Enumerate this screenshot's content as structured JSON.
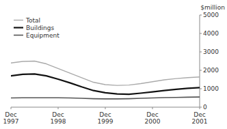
{
  "chart_data": {
    "type": "line",
    "ylabel": "$million",
    "categories": [
      "Dec\n1997",
      null,
      null,
      null,
      "Dec\n1998",
      null,
      null,
      null,
      "Dec\n1999",
      null,
      null,
      null,
      "Dec\n2000",
      null,
      null,
      null,
      "Dec\n2001"
    ],
    "series": [
      {
        "name": "Total",
        "color": "#aaaaaa",
        "values": [
          2400,
          2480,
          2500,
          2350,
          2100,
          1850,
          1600,
          1350,
          1220,
          1180,
          1200,
          1280,
          1380,
          1480,
          1550,
          1600,
          1640
        ]
      },
      {
        "name": "Buildings",
        "color": "#111111",
        "values": [
          1700,
          1780,
          1800,
          1700,
          1520,
          1320,
          1100,
          900,
          780,
          720,
          700,
          760,
          830,
          900,
          970,
          1020,
          1060
        ]
      },
      {
        "name": "Equipment",
        "color": "#555555",
        "values": [
          500,
          510,
          510,
          510,
          510,
          500,
          480,
          460,
          450,
          450,
          460,
          480,
          500,
          520,
          530,
          540,
          550
        ]
      }
    ],
    "ylim": [
      0,
      5000
    ],
    "yticks": [
      0,
      1000,
      2000,
      3000,
      4000,
      5000
    ],
    "legend": "upper left",
    "grid": false,
    "background_color": "#ffffff"
  }
}
